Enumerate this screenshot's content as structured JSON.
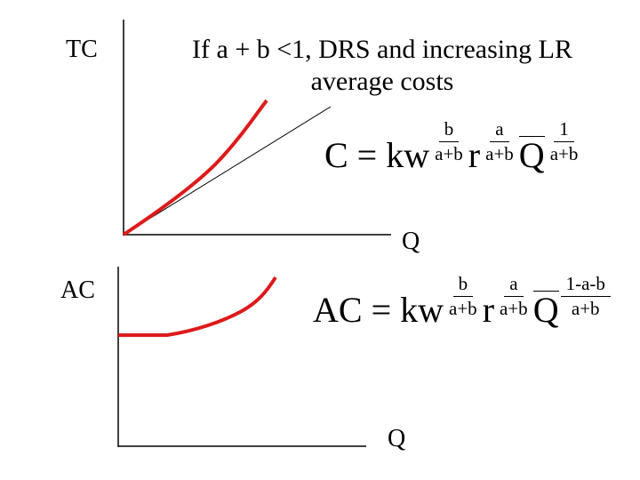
{
  "colors": {
    "curve": "#dd1a1a",
    "axis": "#000000",
    "ray": "#000000"
  },
  "top_chart": {
    "ylabel": "TC",
    "xlabel": "Q"
  },
  "title": {
    "line1": "If a + b <1, DRS and increasing LR",
    "line2": "average costs"
  },
  "tc_formula": {
    "lhs": "C = kw",
    "w_exp": {
      "num": "b",
      "den": "a+b"
    },
    "r": "r",
    "r_exp": {
      "num": "a",
      "den": "a+b"
    },
    "q": "Q",
    "q_exp": {
      "num": "1",
      "den": "a+b"
    }
  },
  "bottom_chart": {
    "ylabel": "AC",
    "xlabel": "Q"
  },
  "ac_formula": {
    "lhs": "AC = kw",
    "w_exp": {
      "num": "b",
      "den": "a+b"
    },
    "r": "r",
    "r_exp": {
      "num": "a",
      "den": "a+b"
    },
    "q": "Q",
    "q_exp": {
      "num": "1-a-b",
      "den": "a+b"
    }
  }
}
